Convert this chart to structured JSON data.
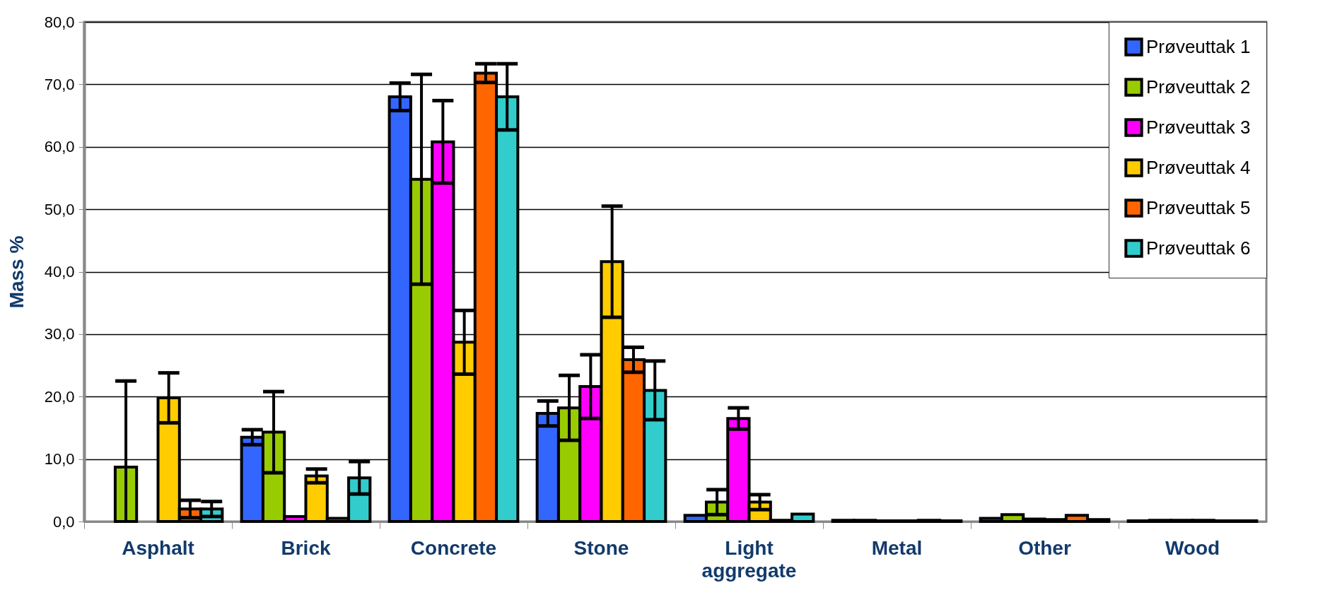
{
  "chart_data": {
    "type": "bar",
    "ylabel": "Mass %",
    "categories": [
      "Asphalt",
      "Brick",
      "Concrete",
      "Stone",
      "Light aggregate",
      "Metal",
      "Other",
      "Wood"
    ],
    "series": [
      {
        "name": "Prøveuttak 1",
        "color": "#3366ff",
        "values": [
          0,
          13.5,
          68.0,
          17.3,
          1.0,
          0.2,
          0.5,
          0.1
        ],
        "errors": [
          null,
          1.2,
          2.2,
          2.0,
          null,
          null,
          null,
          null
        ]
      },
      {
        "name": "Prøveuttak 2",
        "color": "#99cc00",
        "values": [
          8.7,
          14.3,
          54.8,
          18.2,
          3.1,
          0.2,
          1.1,
          0.2
        ],
        "errors": [
          [
            0,
            22.5
          ],
          6.5,
          16.8,
          5.2,
          2.0,
          null,
          null,
          null
        ]
      },
      {
        "name": "Prøveuttak 3",
        "color": "#ff00ff",
        "values": [
          0,
          0.8,
          60.8,
          21.6,
          16.5,
          0.1,
          0.4,
          0.2
        ],
        "errors": [
          null,
          null,
          6.6,
          5.1,
          1.7,
          null,
          null,
          null
        ]
      },
      {
        "name": "Prøveuttak 4",
        "color": "#ffcc00",
        "values": [
          19.8,
          7.3,
          28.7,
          41.6,
          3.1,
          0.1,
          0.3,
          0.2
        ],
        "errors": [
          4.0,
          1.1,
          5.1,
          8.9,
          1.2,
          null,
          null,
          null
        ]
      },
      {
        "name": "Prøveuttak 5",
        "color": "#ff6600",
        "values": [
          2.0,
          0.5,
          71.8,
          25.9,
          0.2,
          0.2,
          1.0,
          0.1
        ],
        "errors": [
          1.4,
          null,
          1.5,
          2.0,
          null,
          null,
          null,
          null
        ]
      },
      {
        "name": "Prøveuttak 6",
        "color": "#33cccc",
        "values": [
          2.0,
          7.0,
          68.0,
          21.0,
          1.2,
          0.1,
          0.3,
          0.1
        ],
        "errors": [
          1.2,
          2.6,
          5.3,
          4.7,
          null,
          null,
          null,
          null
        ]
      }
    ],
    "ylim": [
      0,
      80
    ],
    "yticks": [
      {
        "value": 0,
        "label": "0,0"
      },
      {
        "value": 10,
        "label": "10,0"
      },
      {
        "value": 20,
        "label": "20,0"
      },
      {
        "value": 30,
        "label": "30,0"
      },
      {
        "value": 40,
        "label": "40,0"
      },
      {
        "value": 50,
        "label": "50,0"
      },
      {
        "value": 60,
        "label": "60,0"
      },
      {
        "value": 70,
        "label": "70,0"
      },
      {
        "value": 80,
        "label": "80,0"
      }
    ],
    "grid": "y",
    "legend": "top right"
  }
}
